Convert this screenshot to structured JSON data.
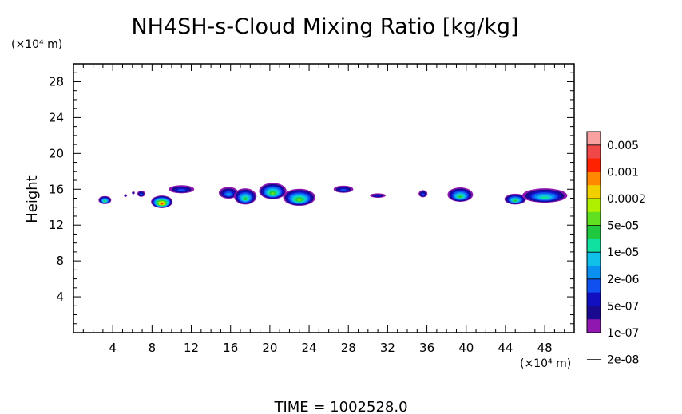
{
  "chart_data": {
    "type": "heatmap",
    "title": "NH4SH-s-Cloud Mixing Ratio [kg/kg]",
    "ylabel": "Height",
    "x_unit": "(×10⁴ m)",
    "y_unit": "(×10⁴ m)",
    "xlim": [
      0,
      51
    ],
    "ylim": [
      0,
      30
    ],
    "x_ticks": [
      4,
      8,
      12,
      16,
      20,
      24,
      28,
      32,
      36,
      40,
      44,
      48
    ],
    "y_ticks": [
      4,
      8,
      12,
      16,
      20,
      24,
      28
    ],
    "colorbar": {
      "labels": [
        "0.005",
        "0.001",
        "0.0002",
        "5e-05",
        "1e-05",
        "2e-06",
        "5e-07",
        "1e-07",
        "2e-08"
      ],
      "colors": [
        "#f9a0a0",
        "#f04848",
        "#ff2200",
        "#ff8800",
        "#f2d000",
        "#aef000",
        "#60e020",
        "#20c840",
        "#10e0a0",
        "#10c0e8",
        "#0a90f0",
        "#1050f0",
        "#1010c0",
        "#1a0a90",
        "#9018b0"
      ]
    },
    "clouds": [
      {
        "x": 3.2,
        "y": 14.8,
        "w": 1.3,
        "h": 0.9,
        "peak": 7
      },
      {
        "x": 5.3,
        "y": 15.3,
        "w": 0.3,
        "h": 0.3,
        "peak": 2
      },
      {
        "x": 6.1,
        "y": 15.6,
        "w": 0.3,
        "h": 0.3,
        "peak": 2
      },
      {
        "x": 6.9,
        "y": 15.5,
        "w": 0.8,
        "h": 0.7,
        "peak": 3
      },
      {
        "x": 9.0,
        "y": 14.6,
        "w": 2.2,
        "h": 1.4,
        "peak": 12
      },
      {
        "x": 11.0,
        "y": 16.0,
        "w": 2.6,
        "h": 0.9,
        "peak": 3
      },
      {
        "x": 15.8,
        "y": 15.6,
        "w": 2.0,
        "h": 1.3,
        "peak": 4
      },
      {
        "x": 17.5,
        "y": 15.2,
        "w": 2.3,
        "h": 1.8,
        "peak": 7
      },
      {
        "x": 20.3,
        "y": 15.8,
        "w": 2.8,
        "h": 1.8,
        "peak": 8
      },
      {
        "x": 23.0,
        "y": 15.1,
        "w": 3.3,
        "h": 1.9,
        "peak": 8
      },
      {
        "x": 27.5,
        "y": 16.0,
        "w": 2.0,
        "h": 0.8,
        "peak": 3
      },
      {
        "x": 31.0,
        "y": 15.3,
        "w": 1.6,
        "h": 0.5,
        "peak": 2
      },
      {
        "x": 35.6,
        "y": 15.5,
        "w": 0.9,
        "h": 0.8,
        "peak": 3
      },
      {
        "x": 39.4,
        "y": 15.4,
        "w": 2.6,
        "h": 1.6,
        "peak": 7
      },
      {
        "x": 45.0,
        "y": 14.9,
        "w": 2.2,
        "h": 1.2,
        "peak": 7
      },
      {
        "x": 48.0,
        "y": 15.3,
        "w": 4.6,
        "h": 1.6,
        "peak": 6
      }
    ]
  },
  "footer": {
    "time_label": "TIME  =  1002528.0"
  }
}
